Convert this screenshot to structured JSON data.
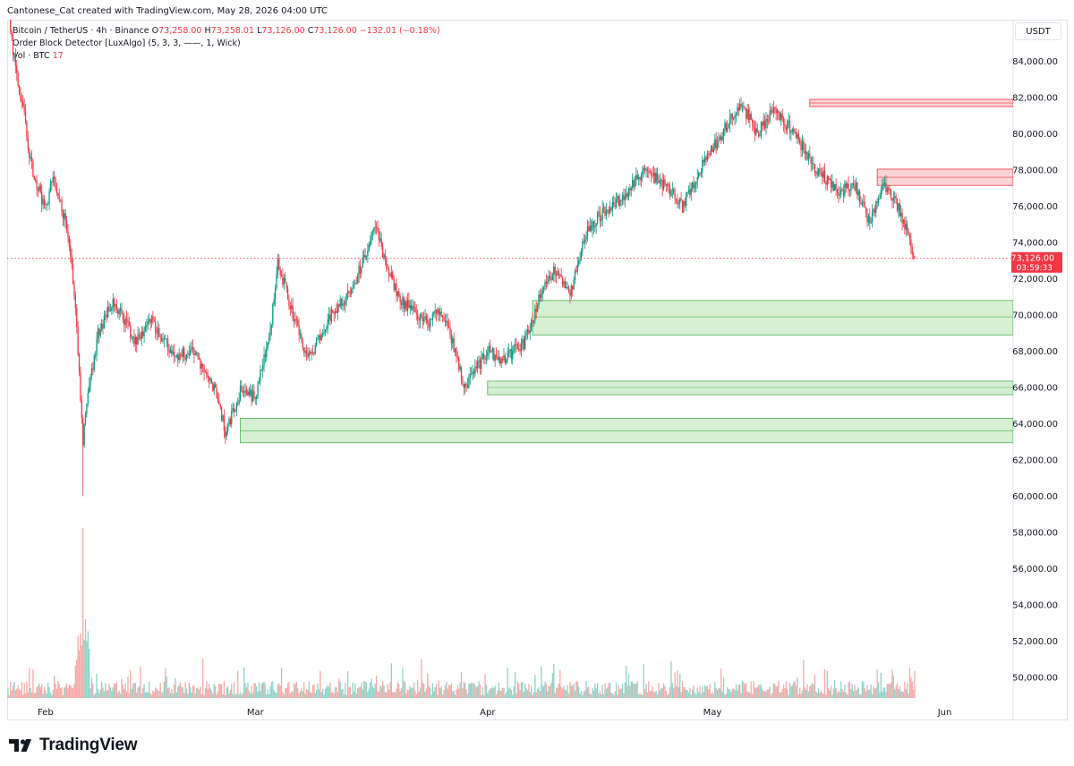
{
  "header": {
    "credit": "Cantonese_Cat created with TradingView.com, May 28, 2026 04:00 UTC"
  },
  "legend": {
    "symbol": "Bitcoin / TetherUS · 4h · Binance",
    "o_label": "O",
    "o_value": "73,258.00",
    "h_label": "H",
    "h_value": "73,258.01",
    "l_label": "L",
    "l_value": "73,126.00",
    "c_label": "C",
    "c_value": "73,126.00",
    "change": "−132.01 (−0.18%)",
    "indicator": "Order Block Detector [LuxAlgo] (5, 3, 3, ——, 1, Wick)",
    "volume_label": "Vol · BTC",
    "volume_value": "17"
  },
  "currency_button": "USDT",
  "last_price": {
    "price": "73,126.00",
    "countdown": "03:59:33"
  },
  "brand": "TradingView",
  "colors": {
    "up": "#089981",
    "down": "#f23645",
    "bull_ob": "#d6efd3",
    "bull_ob_border": "#4caf50",
    "bear_ob": "#fbd3d6",
    "bear_ob_border": "#f23645",
    "vol_up": "#8fd3c8",
    "vol_down": "#f7a9a7"
  },
  "chart_data": {
    "type": "candlestick",
    "title": "Bitcoin / TetherUS · 4h · Binance",
    "ylim": [
      48500,
      85500
    ],
    "y_ticks": [
      50000,
      52000,
      54000,
      56000,
      58000,
      60000,
      62000,
      64000,
      66000,
      68000,
      70000,
      72000,
      74000,
      76000,
      78000,
      80000,
      82000,
      84000
    ],
    "y_tick_labels": [
      "50,000.00",
      "52,000.00",
      "54,000.00",
      "56,000.00",
      "58,000.00",
      "60,000.00",
      "62,000.00",
      "64,000.00",
      "66,000.00",
      "68,000.00",
      "70,000.00",
      "72,000.00",
      "74,000.00",
      "76,000.00",
      "78,000.00",
      "80,000.00",
      "82,000.00",
      "84,000.00"
    ],
    "x_range": [
      "2026-01-27",
      "2026-06-05"
    ],
    "x_ticks": [
      {
        "date": "2026-02-01",
        "label": "Feb"
      },
      {
        "date": "2026-03-01",
        "label": "Mar"
      },
      {
        "date": "2026-04-01",
        "label": "Apr"
      },
      {
        "date": "2026-05-01",
        "label": "May"
      },
      {
        "date": "2026-06-01",
        "label": "Jun"
      }
    ],
    "price_path": [
      [
        "2026-01-27",
        87000
      ],
      [
        "2026-01-28",
        83500
      ],
      [
        "2026-01-29",
        81500
      ],
      [
        "2026-01-30",
        78500
      ],
      [
        "2026-01-31",
        77000
      ],
      [
        "2026-02-01",
        75800
      ],
      [
        "2026-02-02",
        77800
      ],
      [
        "2026-02-03",
        76200
      ],
      [
        "2026-02-04",
        74500
      ],
      [
        "2026-02-05",
        70500
      ],
      [
        "2026-02-06",
        63000
      ],
      [
        "2026-02-06T12",
        65000
      ],
      [
        "2026-02-08",
        69000
      ],
      [
        "2026-02-10",
        70800
      ],
      [
        "2026-02-13",
        68500
      ],
      [
        "2026-02-15",
        69800
      ],
      [
        "2026-02-18",
        67800
      ],
      [
        "2026-02-21",
        67900
      ],
      [
        "2026-02-24",
        65500
      ],
      [
        "2026-02-25",
        63500
      ],
      [
        "2026-02-27",
        65800
      ],
      [
        "2026-03-01",
        65500
      ],
      [
        "2026-03-03",
        69000
      ],
      [
        "2026-03-04",
        73000
      ],
      [
        "2026-03-06",
        70000
      ],
      [
        "2026-03-08",
        67500
      ],
      [
        "2026-03-11",
        70000
      ],
      [
        "2026-03-14",
        71500
      ],
      [
        "2026-03-17",
        74800
      ],
      [
        "2026-03-18",
        73500
      ],
      [
        "2026-03-20",
        71000
      ],
      [
        "2026-03-24",
        69500
      ],
      [
        "2026-03-25",
        70500
      ],
      [
        "2026-03-27",
        69000
      ],
      [
        "2026-03-29",
        66000
      ],
      [
        "2026-04-01",
        68000
      ],
      [
        "2026-04-03",
        67500
      ],
      [
        "2026-04-06",
        68500
      ],
      [
        "2026-04-08",
        71000
      ],
      [
        "2026-04-10",
        72500
      ],
      [
        "2026-04-12",
        71000
      ],
      [
        "2026-04-14",
        74500
      ],
      [
        "2026-04-16",
        75500
      ],
      [
        "2026-04-19",
        76500
      ],
      [
        "2026-04-22",
        78000
      ],
      [
        "2026-04-25",
        77000
      ],
      [
        "2026-04-27",
        76000
      ],
      [
        "2026-04-30",
        78500
      ],
      [
        "2026-05-03",
        80500
      ],
      [
        "2026-05-05",
        81500
      ],
      [
        "2026-05-07",
        80000
      ],
      [
        "2026-05-09",
        81300
      ],
      [
        "2026-05-11",
        80500
      ],
      [
        "2026-05-13",
        79300
      ],
      [
        "2026-05-15",
        78000
      ],
      [
        "2026-05-18",
        76800
      ],
      [
        "2026-05-20",
        77200
      ],
      [
        "2026-05-22",
        75000
      ],
      [
        "2026-05-24",
        77200
      ],
      [
        "2026-05-26",
        75800
      ],
      [
        "2026-05-28",
        73126
      ]
    ],
    "price_extremes": {
      "high": 87000,
      "low": 60000,
      "low_date": "2026-02-06"
    },
    "last_price": 73126,
    "order_blocks": {
      "bearish": [
        {
          "start": "2026-05-14",
          "top": 81900,
          "bottom": 81500,
          "mid": 81700
        },
        {
          "start": "2026-05-23",
          "top": 78050,
          "bottom": 77150,
          "mid": 77600
        }
      ],
      "bullish": [
        {
          "start": "2026-04-07",
          "top": 70800,
          "bottom": 68900,
          "mid": 69900
        },
        {
          "start": "2026-04-01",
          "top": 66350,
          "bottom": 65600,
          "mid": 66000
        },
        {
          "start": "2026-02-27",
          "top": 64300,
          "bottom": 62950,
          "mid": 63600
        }
      ]
    },
    "volume": {
      "spike_date": "2026-02-06",
      "typical": "low",
      "last_value": 17
    }
  }
}
